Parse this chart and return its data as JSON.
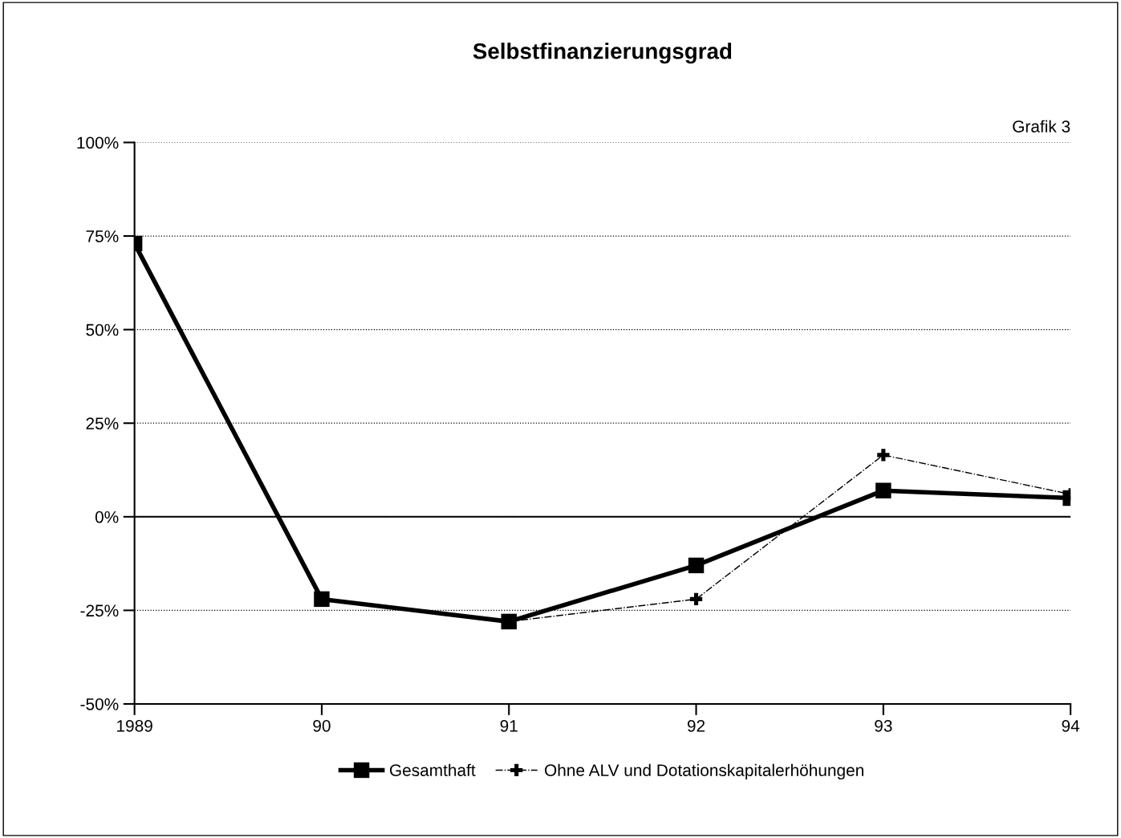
{
  "chart_data": {
    "type": "line",
    "title": "Selbstfinanzierungsgrad",
    "categories": [
      "1989",
      "90",
      "91",
      "92",
      "93",
      "94"
    ],
    "series": [
      {
        "name": "Gesamthaft",
        "color": "#000000",
        "values": [
          73,
          -22,
          -28,
          -13,
          7,
          5
        ],
        "marker": "square",
        "line_style": "solid"
      },
      {
        "name": "Ohne ALV und Dotationskapitalerhöhungen",
        "color": "#000000",
        "values": [
          73,
          -22,
          -28,
          -22,
          16.5,
          6
        ],
        "marker": "cross",
        "line_style": "dashed"
      }
    ],
    "ylim": [
      -50,
      100
    ],
    "yticks": [
      {
        "value": -50,
        "label": "-50%"
      },
      {
        "value": -25,
        "label": "-25%"
      },
      {
        "value": 0,
        "label": "0%"
      },
      {
        "value": 25,
        "label": "25%"
      },
      {
        "value": 50,
        "label": "50%"
      },
      {
        "value": 75,
        "label": "75%"
      },
      {
        "value": 100,
        "label": "100%"
      }
    ],
    "grid": "y",
    "ref_lines": [
      {
        "axis": "y",
        "value": 0,
        "color": "#000000",
        "line_style": "solid"
      }
    ],
    "annotations": [
      "Grafik 3"
    ],
    "legend": "bottom"
  }
}
